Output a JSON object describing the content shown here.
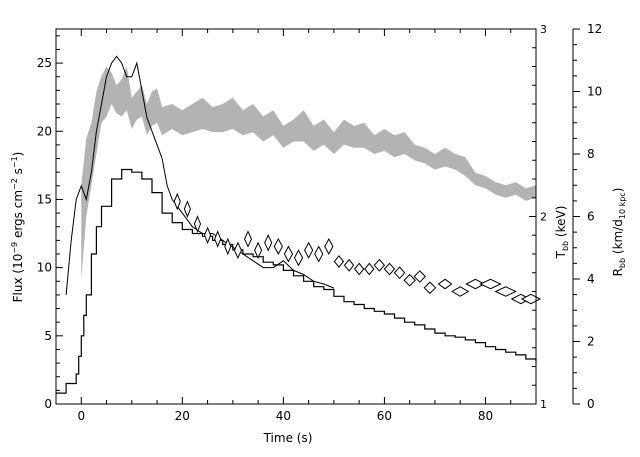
{
  "chart_data": {
    "type": "line",
    "title": "",
    "xlabel": "Time (s)",
    "ylabel_parts": {
      "left_a": "Flux (10",
      "left_exp1": "−9",
      "left_b": " ergs cm",
      "left_exp2": "−2",
      "left_c": " s",
      "left_exp3": "−1",
      "left_d": ")",
      "tbb_a": "T",
      "tbb_sub": "bb",
      "tbb_b": " (keV)",
      "rbb_a": "R",
      "rbb_sub1": "bb",
      "rbb_b": " (km/d",
      "rbb_sub2": "10 kpc",
      "rbb_c": ")"
    },
    "xlim": [
      -5,
      90
    ],
    "ylim": [
      0,
      27.5
    ],
    "ylim_temperature": [
      1,
      3
    ],
    "ylim_radius": [
      0,
      12
    ],
    "x_ticks": [
      0,
      20,
      40,
      60,
      80
    ],
    "y_ticks": [
      0,
      5,
      10,
      15,
      20,
      25
    ],
    "temperature_ticks": [
      1,
      2,
      3
    ],
    "radius_ticks": [
      0,
      2,
      4,
      6,
      8,
      10,
      12
    ],
    "series": [
      {
        "style": "step",
        "x": [
          -5,
          -3,
          -1,
          -0.5,
          0,
          0.5,
          1,
          2,
          3,
          4,
          6,
          8,
          10,
          12,
          14,
          16,
          18,
          20,
          22,
          24,
          26,
          28,
          30,
          32,
          34,
          36,
          38,
          40,
          42,
          44,
          46,
          48,
          50,
          52,
          54,
          56,
          58,
          60,
          62,
          64,
          66,
          68,
          70,
          72,
          74,
          76,
          78,
          80,
          82,
          84,
          86,
          88,
          90
        ],
        "values": [
          0.8,
          1.5,
          2.2,
          3.5,
          5.0,
          6.5,
          8.0,
          11.0,
          13.0,
          14.5,
          16.5,
          17.2,
          17.0,
          16.5,
          15.5,
          14.0,
          13.3,
          12.8,
          12.5,
          12.3,
          12.0,
          11.7,
          11.3,
          11.0,
          10.8,
          10.4,
          10.2,
          9.8,
          9.4,
          9.0,
          8.6,
          8.4,
          7.9,
          7.5,
          7.3,
          7.0,
          6.8,
          6.6,
          6.3,
          6.0,
          5.8,
          5.5,
          5.2,
          5.0,
          4.9,
          4.7,
          4.5,
          4.2,
          4.0,
          3.8,
          3.6,
          3.3,
          3.0
        ]
      },
      {
        "style": "noisy-line",
        "x": [
          -3,
          -2,
          -1,
          0,
          1,
          2,
          3,
          4,
          5,
          6,
          7,
          8,
          9,
          10,
          11,
          12,
          13,
          14,
          15,
          16,
          17,
          18,
          20,
          22,
          24,
          26,
          28,
          30,
          32,
          34,
          36,
          38,
          40,
          42,
          44,
          46,
          48,
          50
        ],
        "values": [
          8,
          12,
          15,
          16,
          15,
          17,
          20,
          22,
          24,
          25,
          25.5,
          25,
          24,
          24,
          25,
          23,
          21,
          20,
          19,
          18,
          16,
          15,
          14,
          13,
          12.5,
          12.5,
          12,
          11.5,
          11,
          10.5,
          10,
          10,
          10.5,
          9.8,
          9.5,
          9,
          8.8,
          8.5
        ]
      },
      {
        "style": "band",
        "axis": "radius",
        "x": [
          0,
          1,
          2,
          3,
          4,
          5,
          6,
          7,
          8,
          9,
          10,
          11,
          12,
          13,
          14,
          15,
          16,
          18,
          20,
          22,
          24,
          26,
          28,
          30,
          32,
          34,
          36,
          38,
          40,
          42,
          44,
          46,
          48,
          50,
          52,
          54,
          56,
          58,
          60,
          62,
          64,
          66,
          68,
          70,
          72,
          74,
          76,
          78,
          80,
          82,
          84,
          86,
          88,
          90
        ],
        "low": [
          4.0,
          6.0,
          7.0,
          8.0,
          9.0,
          9.2,
          9.6,
          9.3,
          9.2,
          9.4,
          8.8,
          9.1,
          9.2,
          8.6,
          8.9,
          9.0,
          8.6,
          8.8,
          8.6,
          8.7,
          8.8,
          8.7,
          8.7,
          8.8,
          8.6,
          8.7,
          8.4,
          8.6,
          8.2,
          8.4,
          8.4,
          8.1,
          8.3,
          8.0,
          8.3,
          8.2,
          8.2,
          8.0,
          8.1,
          7.9,
          8.0,
          7.8,
          7.7,
          7.5,
          7.6,
          7.5,
          7.3,
          7.0,
          6.9,
          6.7,
          6.6,
          6.7,
          6.5,
          6.6
        ],
        "high": [
          7.0,
          8.5,
          9.0,
          10.0,
          10.5,
          10.8,
          10.6,
          10.2,
          10.4,
          10.8,
          9.8,
          10.0,
          10.2,
          9.6,
          10.0,
          10.1,
          9.5,
          9.6,
          9.4,
          9.6,
          9.8,
          9.5,
          9.6,
          9.8,
          9.4,
          9.6,
          9.2,
          9.4,
          8.9,
          9.1,
          9.4,
          8.9,
          9.1,
          8.7,
          9.1,
          8.9,
          9.0,
          8.6,
          8.8,
          8.6,
          8.7,
          8.3,
          8.2,
          8.0,
          8.2,
          8.0,
          7.9,
          7.4,
          7.3,
          7.1,
          7.0,
          7.1,
          6.9,
          7.0
        ]
      },
      {
        "style": "diamond-markers",
        "axis": "temperature",
        "x": [
          19,
          21,
          23,
          25,
          27,
          29,
          31,
          33,
          35,
          37,
          39,
          41,
          43,
          45,
          47,
          49,
          51,
          53,
          55,
          57,
          59,
          61,
          63,
          65,
          67,
          69,
          72,
          75,
          78,
          81,
          84,
          87,
          89
        ],
        "values": [
          2.08,
          2.04,
          1.96,
          1.9,
          1.88,
          1.84,
          1.82,
          1.88,
          1.82,
          1.86,
          1.84,
          1.8,
          1.78,
          1.82,
          1.8,
          1.84,
          1.76,
          1.74,
          1.72,
          1.72,
          1.74,
          1.72,
          1.7,
          1.66,
          1.68,
          1.62,
          1.64,
          1.6,
          1.64,
          1.64,
          1.6,
          1.56,
          1.56
        ],
        "half_width": [
          0.6,
          0.6,
          0.6,
          0.6,
          0.6,
          0.6,
          0.7,
          0.7,
          0.7,
          0.7,
          0.8,
          0.8,
          0.8,
          0.8,
          0.8,
          0.8,
          0.9,
          0.9,
          0.9,
          0.9,
          1.0,
          1.0,
          1.0,
          1.1,
          1.1,
          1.1,
          1.3,
          1.6,
          1.8,
          2.0,
          2.0,
          1.8,
          1.8
        ],
        "half_height": [
          0.04,
          0.04,
          0.04,
          0.04,
          0.04,
          0.04,
          0.04,
          0.04,
          0.04,
          0.04,
          0.04,
          0.04,
          0.04,
          0.04,
          0.04,
          0.04,
          0.03,
          0.03,
          0.03,
          0.03,
          0.03,
          0.03,
          0.03,
          0.03,
          0.03,
          0.03,
          0.025,
          0.025,
          0.025,
          0.025,
          0.025,
          0.025,
          0.025
        ]
      }
    ],
    "colors": {
      "axis": "#000000",
      "step_line": "#000000",
      "band_fill": "#b3b3b3",
      "marker_stroke": "#000000"
    },
    "grid": false,
    "legend": "none"
  }
}
